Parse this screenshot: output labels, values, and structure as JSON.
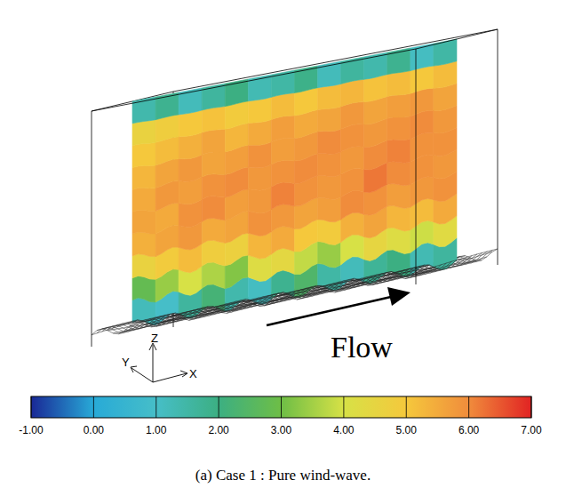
{
  "chart_data": {
    "type": "heatmap",
    "title": "(a) Case 1 : Pure wind-wave.",
    "annotations": [
      "Flow"
    ],
    "x_label": "X",
    "y_label": "Y",
    "z_label": "Z",
    "cells": [
      [
        1.2,
        1.0,
        1.6,
        2.2,
        1.4,
        1.1,
        1.8,
        2.4,
        1.5,
        1.2,
        1.7,
        2.0,
        1.3,
        1.6
      ],
      [
        2.8,
        3.4,
        4.0,
        3.6,
        3.2,
        4.2,
        4.4,
        3.8,
        3.4,
        4.0,
        4.5,
        4.2,
        3.9,
        4.3
      ],
      [
        4.6,
        4.9,
        5.2,
        4.8,
        4.7,
        5.3,
        5.5,
        5.0,
        4.9,
        5.4,
        5.6,
        5.3,
        5.2,
        5.5
      ],
      [
        5.4,
        5.6,
        5.8,
        5.5,
        5.6,
        5.9,
        5.8,
        5.6,
        5.7,
        6.0,
        5.9,
        5.7,
        5.8,
        5.9
      ],
      [
        5.6,
        5.5,
        5.9,
        6.0,
        5.7,
        5.8,
        6.1,
        5.9,
        5.8,
        5.9,
        6.2,
        6.0,
        5.9,
        5.8
      ],
      [
        5.5,
        5.8,
        5.7,
        5.9,
        6.0,
        5.8,
        5.9,
        6.0,
        5.9,
        5.8,
        6.0,
        6.1,
        5.9,
        5.9
      ],
      [
        5.3,
        5.6,
        5.8,
        5.6,
        5.7,
        5.9,
        5.7,
        5.8,
        6.0,
        5.9,
        5.8,
        5.9,
        6.0,
        5.8
      ],
      [
        5.0,
        5.2,
        5.4,
        5.6,
        5.3,
        5.5,
        5.7,
        5.5,
        5.6,
        5.8,
        5.6,
        5.7,
        5.8,
        5.6
      ],
      [
        4.6,
        4.8,
        5.0,
        5.1,
        4.9,
        5.0,
        5.2,
        5.0,
        5.2,
        5.3,
        5.1,
        5.2,
        5.0,
        5.2
      ],
      [
        1.4,
        1.8,
        1.2,
        1.6,
        2.0,
        1.3,
        1.5,
        1.9,
        1.2,
        1.6,
        1.4,
        1.8,
        1.1,
        1.5
      ]
    ],
    "colorbar": {
      "range": [
        -1,
        7
      ],
      "ticks": [
        {
          "value": -1,
          "label": "-1.00"
        },
        {
          "value": 0,
          "label": "0.00"
        },
        {
          "value": 1,
          "label": "1.00"
        },
        {
          "value": 2,
          "label": "2.00"
        },
        {
          "value": 3,
          "label": "3.00"
        },
        {
          "value": 4,
          "label": "4.00"
        },
        {
          "value": 5,
          "label": "5.00"
        },
        {
          "value": 6,
          "label": "6.00"
        },
        {
          "value": 7,
          "label": "7.00"
        }
      ]
    }
  }
}
